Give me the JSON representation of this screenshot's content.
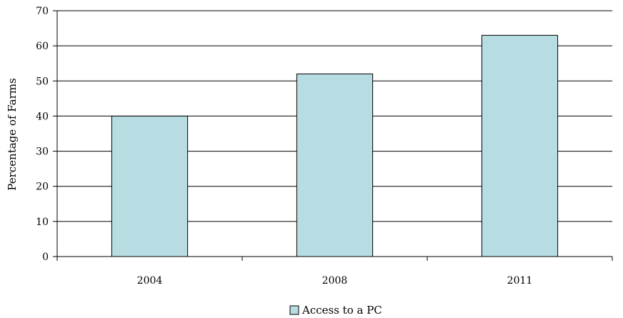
{
  "chart_data": {
    "type": "bar",
    "title": "",
    "xlabel": "",
    "ylabel": "Percentage of Farms",
    "categories": [
      "2004",
      "2008",
      "2011"
    ],
    "series": [
      {
        "name": "Access to a PC",
        "values": [
          40,
          52,
          63
        ],
        "color": "#b7dde3"
      }
    ],
    "ylim": [
      0,
      70
    ],
    "yticks": [
      0,
      10,
      20,
      30,
      40,
      50,
      60,
      70
    ],
    "grid": true,
    "legend_position": "bottom-center",
    "colors": {
      "bar_fill": "#b7dde3",
      "bar_stroke": "#000000",
      "grid": "#000000",
      "axis": "#000000"
    }
  }
}
